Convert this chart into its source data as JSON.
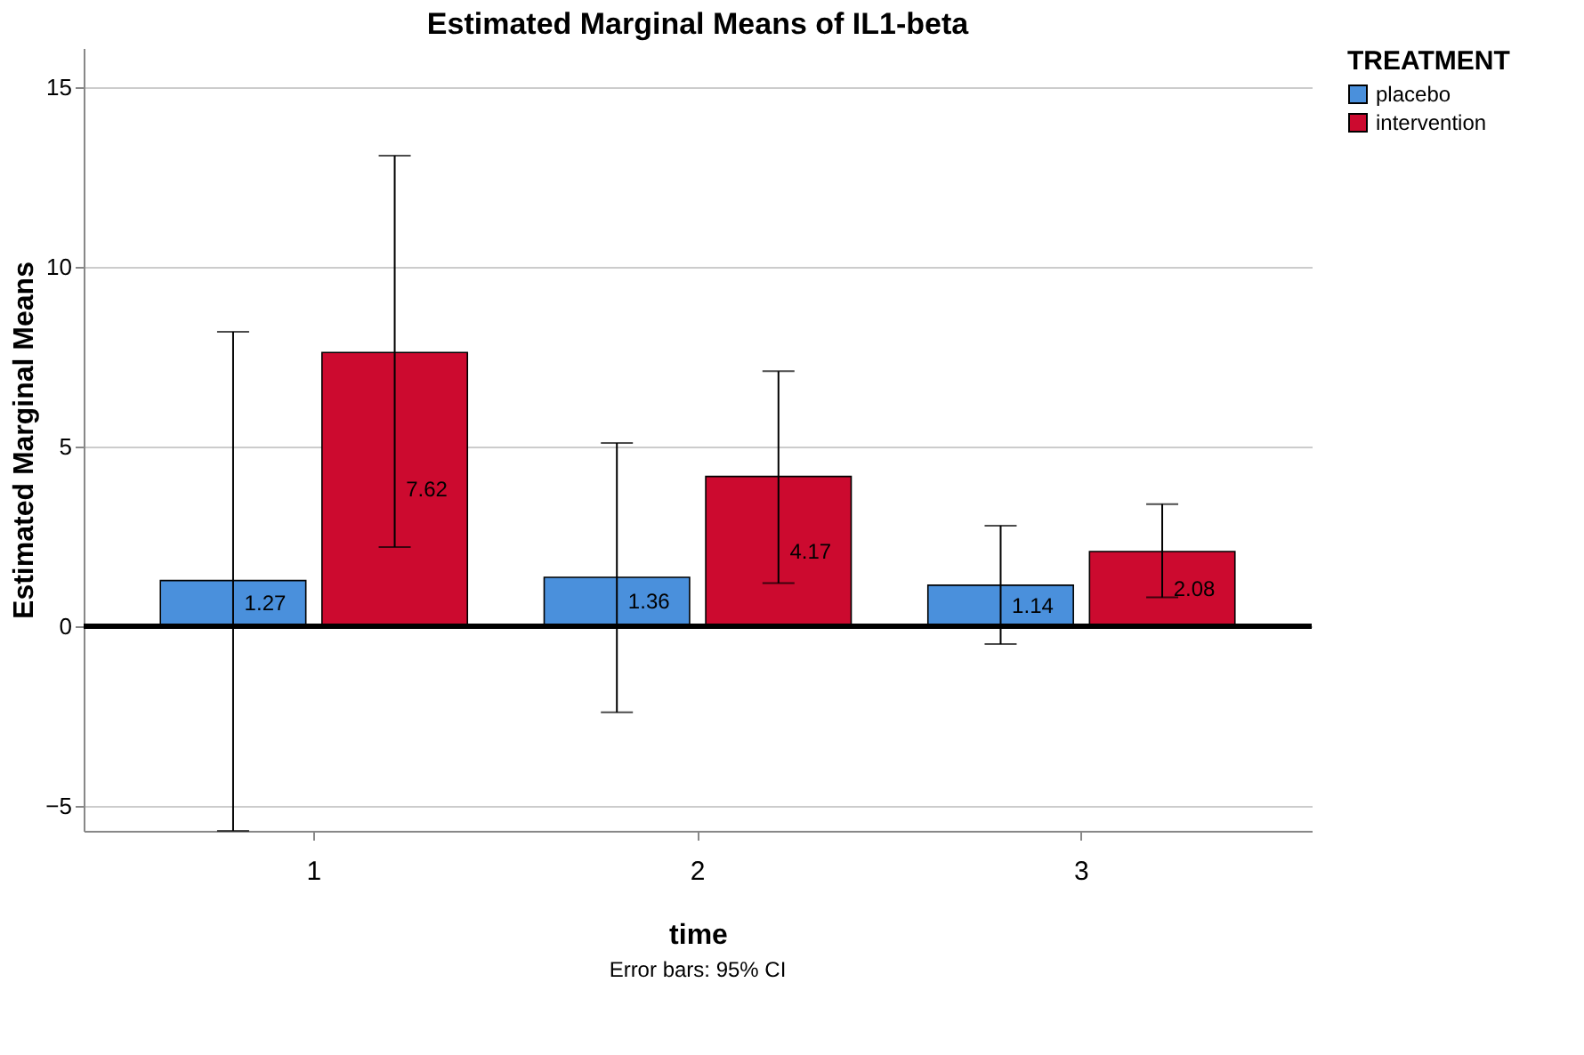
{
  "chart_data": {
    "type": "bar",
    "title": "Estimated Marginal Means of IL1-beta",
    "xlabel": "time",
    "ylabel": "Estimated Marginal Means",
    "legend_title": "TREATMENT",
    "categories": [
      "1",
      "2",
      "3"
    ],
    "series": [
      {
        "name": "placebo",
        "color": "#4a90dc",
        "values": [
          1.27,
          1.36,
          1.14
        ],
        "errors": [
          [
            -5.7,
            8.2
          ],
          [
            -2.4,
            5.1
          ],
          [
            -0.5,
            2.8
          ]
        ]
      },
      {
        "name": "intervention",
        "color": "#cc0a2f",
        "values": [
          7.62,
          4.17,
          2.08
        ],
        "errors": [
          [
            2.2,
            13.1
          ],
          [
            1.2,
            7.1
          ],
          [
            0.8,
            3.4
          ]
        ]
      }
    ],
    "ylim": [
      -5.7,
      16.1
    ],
    "yticks": [
      -5,
      0,
      5,
      10,
      15
    ],
    "grid": "y",
    "legend": "top right",
    "data_labels": true,
    "ref_lines": [
      {
        "axis": "y",
        "value": 0,
        "color": "#000000"
      }
    ],
    "annotations": [
      "Error bars: 95% CI"
    ]
  }
}
